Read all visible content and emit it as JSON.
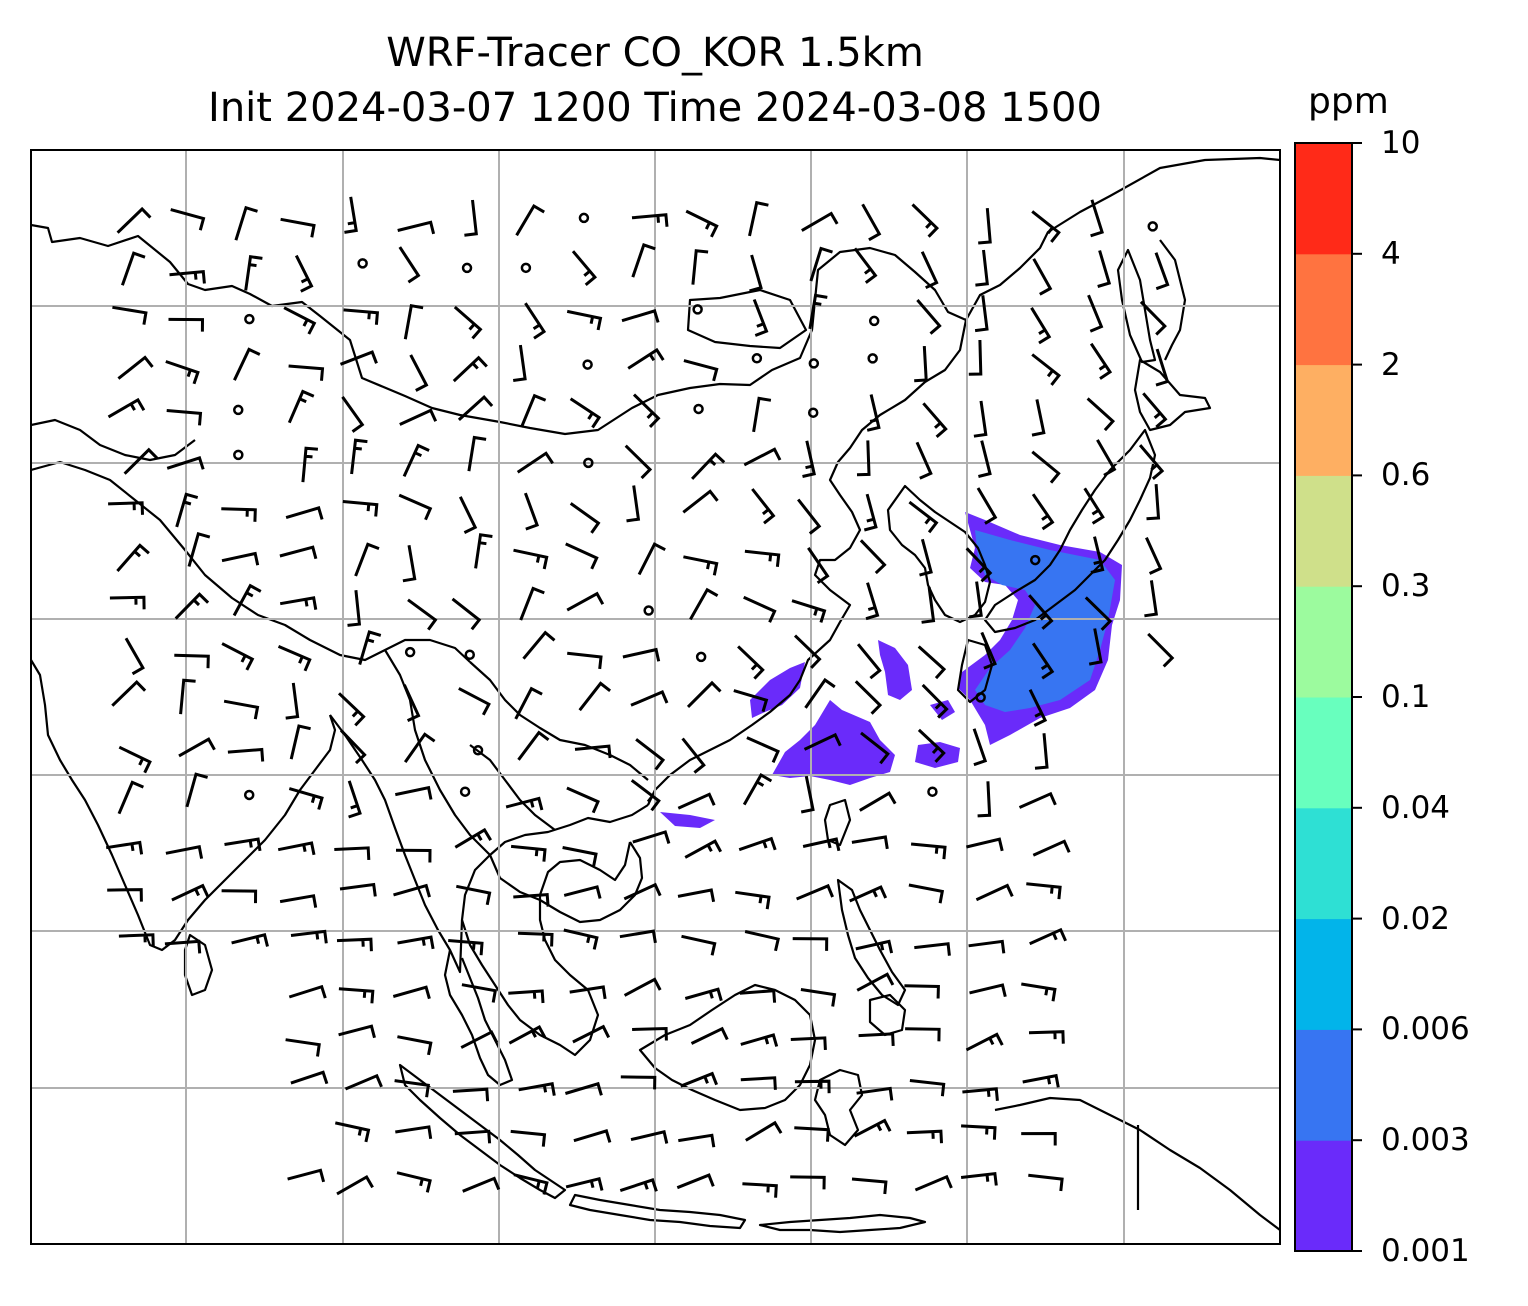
{
  "title": {
    "line1": "WRF-Tracer CO_KOR 1.5km",
    "line2": "Init 2024-03-07 1200 Time 2024-03-08 1500"
  },
  "colorbar": {
    "unit": "ppm",
    "levels": [
      "0.001",
      "0.003",
      "0.006",
      "0.02",
      "0.04",
      "0.1",
      "0.3",
      "0.6",
      "2",
      "4",
      "10"
    ],
    "colors": [
      "#6a2bfa",
      "#3775f2",
      "#02b4ea",
      "#2ee0d4",
      "#68ffbe",
      "#9cfb9e",
      "#cfe08a",
      "#feaf62",
      "#ff7340",
      "#ff2a18"
    ]
  },
  "map": {
    "region": "East / Southeast Asia",
    "gridlines": true,
    "tracer_color_lowest": "#6a2bfa",
    "tracer_color_second": "#3775f2",
    "coastline_color": "#000000",
    "grid_color": "#b0b0b0"
  }
}
